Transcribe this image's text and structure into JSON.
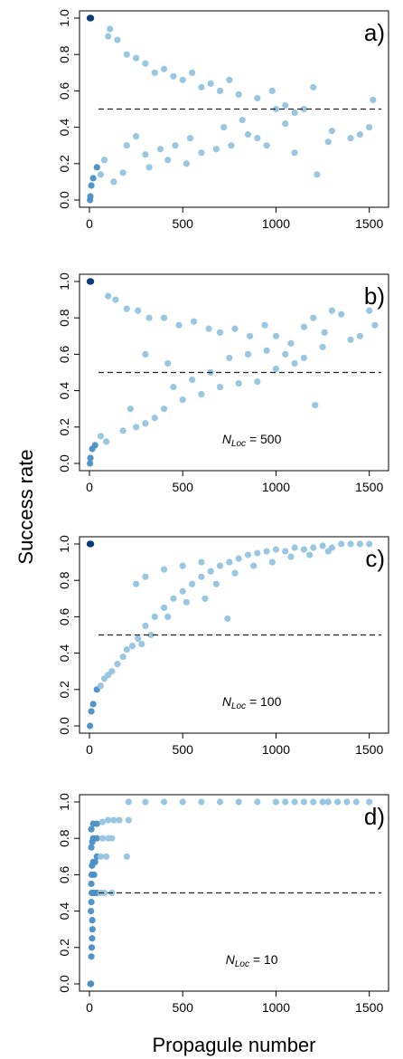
{
  "figure": {
    "ylabel": "Success rate",
    "xlabel": "Propagule number"
  },
  "colors": {
    "point_light": "#94c4df",
    "point_mid": "#4a8fc6",
    "point_dark": "#0b3a78",
    "reference_line": "#222222",
    "axis": "#000000"
  },
  "chart_data": [
    {
      "type": "scatter",
      "panel_label": "a)",
      "annotation": "",
      "xlim": [
        0,
        1550
      ],
      "ylim": [
        0,
        1.0
      ],
      "xticks": [
        0,
        500,
        1000,
        1500
      ],
      "yticks": [
        0.0,
        0.2,
        0.4,
        0.6,
        0.8,
        1.0
      ],
      "xtick_labels": [
        "0",
        "500",
        "1000",
        "1500"
      ],
      "ytick_labels": [
        "0.0",
        "0.2",
        "0.4",
        "0.6",
        "0.8",
        "1.0"
      ],
      "reference_line_y": 0.5,
      "grid": false,
      "points": [
        [
          2,
          1.0
        ],
        [
          4,
          1.0
        ],
        [
          6,
          1.0
        ],
        [
          8,
          1.0
        ],
        [
          3,
          0.0
        ],
        [
          5,
          0.02
        ],
        [
          10,
          0.08
        ],
        [
          20,
          0.12
        ],
        [
          40,
          0.18
        ],
        [
          60,
          0.14
        ],
        [
          80,
          0.22
        ],
        [
          100,
          0.9
        ],
        [
          110,
          0.94
        ],
        [
          150,
          0.88
        ],
        [
          200,
          0.8
        ],
        [
          250,
          0.78
        ],
        [
          300,
          0.75
        ],
        [
          350,
          0.7
        ],
        [
          400,
          0.72
        ],
        [
          450,
          0.68
        ],
        [
          500,
          0.66
        ],
        [
          550,
          0.7
        ],
        [
          600,
          0.62
        ],
        [
          650,
          0.64
        ],
        [
          700,
          0.6
        ],
        [
          750,
          0.66
        ],
        [
          800,
          0.58
        ],
        [
          900,
          0.56
        ],
        [
          980,
          0.6
        ],
        [
          1000,
          0.5
        ],
        [
          1050,
          0.52
        ],
        [
          1100,
          0.48
        ],
        [
          1150,
          0.5
        ],
        [
          1200,
          0.62
        ],
        [
          1220,
          0.14
        ],
        [
          1280,
          0.32
        ],
        [
          1300,
          0.38
        ],
        [
          1400,
          0.34
        ],
        [
          1450,
          0.36
        ],
        [
          1500,
          0.4
        ],
        [
          1520,
          0.55
        ],
        [
          320,
          0.18
        ],
        [
          420,
          0.22
        ],
        [
          520,
          0.2
        ],
        [
          600,
          0.26
        ],
        [
          680,
          0.28
        ],
        [
          760,
          0.3
        ],
        [
          850,
          0.36
        ],
        [
          900,
          0.34
        ],
        [
          950,
          0.3
        ],
        [
          1050,
          0.42
        ],
        [
          1100,
          0.26
        ],
        [
          460,
          0.3
        ],
        [
          380,
          0.28
        ],
        [
          540,
          0.34
        ],
        [
          720,
          0.4
        ],
        [
          820,
          0.44
        ],
        [
          300,
          0.25
        ],
        [
          250,
          0.35
        ],
        [
          200,
          0.3
        ],
        [
          180,
          0.15
        ],
        [
          130,
          0.1
        ]
      ]
    },
    {
      "type": "scatter",
      "panel_label": "b)",
      "annotation": "= 500",
      "annotation_symbol": "N",
      "annotation_subscript": "Loc",
      "xlim": [
        0,
        1550
      ],
      "ylim": [
        0,
        1.0
      ],
      "xticks": [
        0,
        500,
        1000,
        1500
      ],
      "yticks": [
        0.0,
        0.2,
        0.4,
        0.6,
        0.8,
        1.0
      ],
      "xtick_labels": [
        "0",
        "500",
        "1000",
        "1500"
      ],
      "ytick_labels": [
        "0.0",
        "0.2",
        "0.4",
        "0.6",
        "0.8",
        "1.0"
      ],
      "reference_line_y": 0.5,
      "grid": false,
      "points": [
        [
          2,
          1.0
        ],
        [
          4,
          1.0
        ],
        [
          6,
          1.0
        ],
        [
          8,
          1.0
        ],
        [
          3,
          0.0
        ],
        [
          5,
          0.03
        ],
        [
          15,
          0.08
        ],
        [
          30,
          0.1
        ],
        [
          60,
          0.15
        ],
        [
          90,
          0.12
        ],
        [
          100,
          0.92
        ],
        [
          140,
          0.9
        ],
        [
          200,
          0.85
        ],
        [
          260,
          0.84
        ],
        [
          320,
          0.8
        ],
        [
          400,
          0.8
        ],
        [
          480,
          0.76
        ],
        [
          560,
          0.78
        ],
        [
          640,
          0.74
        ],
        [
          700,
          0.72
        ],
        [
          780,
          0.74
        ],
        [
          860,
          0.7
        ],
        [
          940,
          0.76
        ],
        [
          1000,
          0.7
        ],
        [
          1080,
          0.66
        ],
        [
          1150,
          0.75
        ],
        [
          1200,
          0.8
        ],
        [
          1260,
          0.72
        ],
        [
          1300,
          0.84
        ],
        [
          1350,
          0.82
        ],
        [
          1400,
          0.68
        ],
        [
          1450,
          0.7
        ],
        [
          1500,
          0.84
        ],
        [
          1530,
          0.76
        ],
        [
          1210,
          0.32
        ],
        [
          400,
          0.3
        ],
        [
          500,
          0.35
        ],
        [
          600,
          0.38
        ],
        [
          700,
          0.42
        ],
        [
          800,
          0.44
        ],
        [
          900,
          0.45
        ],
        [
          1000,
          0.52
        ],
        [
          1100,
          0.55
        ],
        [
          350,
          0.25
        ],
        [
          300,
          0.22
        ],
        [
          250,
          0.2
        ],
        [
          220,
          0.3
        ],
        [
          180,
          0.18
        ],
        [
          450,
          0.42
        ],
        [
          550,
          0.46
        ],
        [
          650,
          0.5
        ],
        [
          750,
          0.58
        ],
        [
          850,
          0.6
        ],
        [
          950,
          0.62
        ],
        [
          1050,
          0.6
        ],
        [
          1150,
          0.58
        ],
        [
          1250,
          0.64
        ],
        [
          300,
          0.6
        ],
        [
          420,
          0.55
        ]
      ]
    },
    {
      "type": "scatter",
      "panel_label": "c)",
      "annotation": "= 100",
      "annotation_symbol": "N",
      "annotation_subscript": "Loc",
      "xlim": [
        0,
        1550
      ],
      "ylim": [
        0,
        1.0
      ],
      "xticks": [
        0,
        500,
        1000,
        1500
      ],
      "yticks": [
        0.0,
        0.2,
        0.4,
        0.6,
        0.8,
        1.0
      ],
      "xtick_labels": [
        "0",
        "500",
        "1000",
        "1500"
      ],
      "ytick_labels": [
        "0.0",
        "0.2",
        "0.4",
        "0.6",
        "0.8",
        "1.0"
      ],
      "reference_line_y": 0.5,
      "grid": false,
      "points": [
        [
          2,
          1.0
        ],
        [
          4,
          1.0
        ],
        [
          6,
          1.0
        ],
        [
          8,
          1.0
        ],
        [
          3,
          0.0
        ],
        [
          10,
          0.08
        ],
        [
          20,
          0.12
        ],
        [
          40,
          0.2
        ],
        [
          60,
          0.22
        ],
        [
          80,
          0.26
        ],
        [
          100,
          0.28
        ],
        [
          120,
          0.3
        ],
        [
          150,
          0.34
        ],
        [
          180,
          0.38
        ],
        [
          200,
          0.42
        ],
        [
          230,
          0.44
        ],
        [
          260,
          0.48
        ],
        [
          300,
          0.55
        ],
        [
          350,
          0.6
        ],
        [
          400,
          0.65
        ],
        [
          450,
          0.7
        ],
        [
          500,
          0.74
        ],
        [
          550,
          0.78
        ],
        [
          600,
          0.82
        ],
        [
          650,
          0.85
        ],
        [
          700,
          0.88
        ],
        [
          750,
          0.9
        ],
        [
          800,
          0.92
        ],
        [
          850,
          0.94
        ],
        [
          900,
          0.95
        ],
        [
          950,
          0.96
        ],
        [
          1000,
          0.97
        ],
        [
          1050,
          0.96
        ],
        [
          1100,
          0.98
        ],
        [
          1150,
          0.97
        ],
        [
          1200,
          0.98
        ],
        [
          1250,
          0.99
        ],
        [
          1300,
          0.98
        ],
        [
          1350,
          1.0
        ],
        [
          1400,
          1.0
        ],
        [
          1450,
          1.0
        ],
        [
          1500,
          1.0
        ],
        [
          740,
          0.59
        ],
        [
          620,
          0.7
        ],
        [
          520,
          0.68
        ],
        [
          420,
          0.6
        ],
        [
          330,
          0.5
        ],
        [
          280,
          0.45
        ],
        [
          680,
          0.78
        ],
        [
          780,
          0.84
        ],
        [
          880,
          0.88
        ],
        [
          980,
          0.9
        ],
        [
          1080,
          0.93
        ],
        [
          1180,
          0.94
        ],
        [
          1280,
          0.96
        ],
        [
          600,
          0.9
        ],
        [
          500,
          0.88
        ],
        [
          400,
          0.86
        ],
        [
          300,
          0.82
        ],
        [
          250,
          0.78
        ]
      ]
    },
    {
      "type": "scatter",
      "panel_label": "d)",
      "annotation": "= 10",
      "annotation_symbol": "N",
      "annotation_subscript": "Loc",
      "xlim": [
        0,
        1550
      ],
      "ylim": [
        0,
        1.0
      ],
      "xticks": [
        0,
        500,
        1000,
        1500
      ],
      "yticks": [
        0.0,
        0.2,
        0.4,
        0.6,
        0.8,
        1.0
      ],
      "xtick_labels": [
        "0",
        "500",
        "1000",
        "1500"
      ],
      "ytick_labels": [
        "0.0",
        "0.2",
        "0.4",
        "0.6",
        "0.8",
        "1.0"
      ],
      "reference_line_y": 0.5,
      "grid": false,
      "points": [
        [
          5,
          0.0
        ],
        [
          8,
          0.0
        ],
        [
          10,
          0.15
        ],
        [
          12,
          0.2
        ],
        [
          14,
          0.25
        ],
        [
          16,
          0.3
        ],
        [
          8,
          0.4
        ],
        [
          10,
          0.45
        ],
        [
          12,
          0.5
        ],
        [
          20,
          0.5
        ],
        [
          30,
          0.5
        ],
        [
          40,
          0.5
        ],
        [
          60,
          0.5
        ],
        [
          80,
          0.5
        ],
        [
          120,
          0.5
        ],
        [
          10,
          0.55
        ],
        [
          12,
          0.6
        ],
        [
          14,
          0.65
        ],
        [
          20,
          0.67
        ],
        [
          30,
          0.67
        ],
        [
          40,
          0.7
        ],
        [
          60,
          0.7
        ],
        [
          90,
          0.7
        ],
        [
          10,
          0.75
        ],
        [
          15,
          0.78
        ],
        [
          20,
          0.8
        ],
        [
          40,
          0.8
        ],
        [
          70,
          0.8
        ],
        [
          100,
          0.8
        ],
        [
          120,
          0.8
        ],
        [
          10,
          0.85
        ],
        [
          20,
          0.88
        ],
        [
          40,
          0.88
        ],
        [
          70,
          0.89
        ],
        [
          100,
          0.9
        ],
        [
          130,
          0.9
        ],
        [
          160,
          0.9
        ],
        [
          210,
          0.9
        ],
        [
          200,
          0.7
        ],
        [
          210,
          1.0
        ],
        [
          300,
          1.0
        ],
        [
          400,
          1.0
        ],
        [
          500,
          1.0
        ],
        [
          600,
          1.0
        ],
        [
          700,
          1.0
        ],
        [
          800,
          1.0
        ],
        [
          900,
          1.0
        ],
        [
          1000,
          1.0
        ],
        [
          1050,
          1.0
        ],
        [
          1100,
          1.0
        ],
        [
          1150,
          1.0
        ],
        [
          1200,
          1.0
        ],
        [
          1250,
          1.0
        ],
        [
          1280,
          1.0
        ],
        [
          1330,
          1.0
        ],
        [
          1380,
          1.0
        ],
        [
          1430,
          1.0
        ],
        [
          1500,
          1.0
        ],
        [
          15,
          0.35
        ],
        [
          25,
          0.6
        ]
      ]
    }
  ]
}
